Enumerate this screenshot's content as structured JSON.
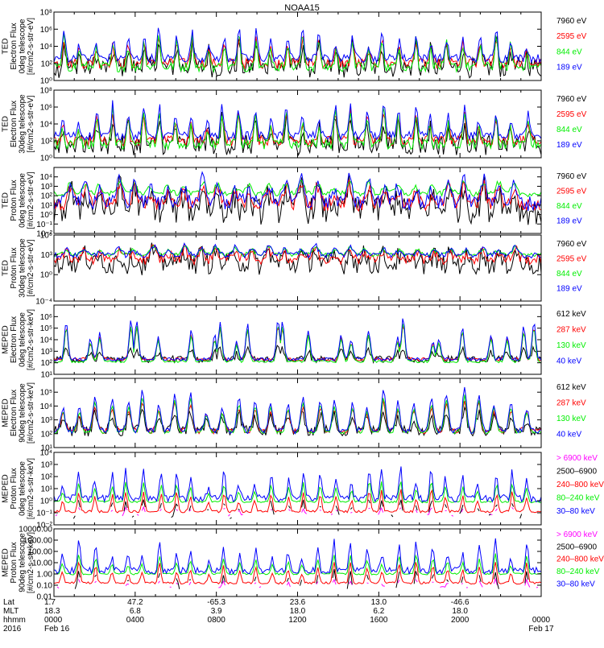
{
  "title": "NOAA15",
  "colors": {
    "black": "#000000",
    "red": "#ff0000",
    "green": "#00ee00",
    "blue": "#0000ff",
    "magenta": "#ff00ff"
  },
  "chart_data": [
    {
      "type": "line",
      "ylabel": [
        "TED",
        "Electron Flux",
        "0deg telescope",
        "[#/cm2-s-str-eV]"
      ],
      "ylog": true,
      "ylim": [
        1,
        100000000.0
      ],
      "yticks": [
        {
          "v": 1,
          "label": "10⁰"
        },
        {
          "v": 100,
          "label": "10²"
        },
        {
          "v": 10000,
          "label": "10⁴"
        },
        {
          "v": 1000000,
          "label": "10⁶"
        },
        {
          "v": 100000000,
          "label": "10⁸"
        }
      ],
      "profile": "ted_e",
      "series": [
        {
          "name": "7960 eV",
          "color": "#000000",
          "base": 1.5,
          "peak": 5,
          "noise": 1.2
        },
        {
          "name": "2595 eV",
          "color": "#ff0000",
          "base": 2.0,
          "peak": 5.5,
          "noise": 0.6
        },
        {
          "name": "844 eV",
          "color": "#00ee00",
          "base": 1.6,
          "peak": 5.8,
          "noise": 0.6
        },
        {
          "name": "189 eV",
          "color": "#0000ff",
          "base": 2.6,
          "peak": 6.2,
          "noise": 0.5
        }
      ]
    },
    {
      "type": "line",
      "ylabel": [
        "TED",
        "Electron Flux",
        "30deg telescope",
        "[#/cm2-s-str-eV]"
      ],
      "ylog": true,
      "ylim": [
        1,
        100000000.0
      ],
      "yticks": [
        {
          "v": 1,
          "label": "10⁰"
        },
        {
          "v": 100,
          "label": "10²"
        },
        {
          "v": 10000,
          "label": "10⁴"
        },
        {
          "v": 1000000,
          "label": "10⁶"
        },
        {
          "v": 100000000,
          "label": "10⁸"
        }
      ],
      "profile": "ted_e",
      "series": [
        {
          "name": "7960 eV",
          "color": "#000000",
          "base": 1.5,
          "peak": 5,
          "noise": 1.2
        },
        {
          "name": "2595 eV",
          "color": "#ff0000",
          "base": 2.0,
          "peak": 5.5,
          "noise": 0.6
        },
        {
          "name": "844 eV",
          "color": "#00ee00",
          "base": 1.6,
          "peak": 5.8,
          "noise": 0.6
        },
        {
          "name": "189 eV",
          "color": "#0000ff",
          "base": 2.6,
          "peak": 6.5,
          "noise": 0.5
        }
      ]
    },
    {
      "type": "line",
      "ylabel": [
        "TED",
        "Proton Flux",
        "0deg telescope",
        "[#/cm2-s-str-eV]"
      ],
      "ylog": true,
      "ylim": [
        0.01,
        100000.0
      ],
      "yticks": [
        {
          "v": 0.01,
          "label": "10⁻²"
        },
        {
          "v": 0.1,
          "label": "10⁻¹"
        },
        {
          "v": 1,
          "label": "10⁰"
        },
        {
          "v": 10,
          "label": "10¹"
        },
        {
          "v": 100,
          "label": "10²"
        },
        {
          "v": 1000,
          "label": "10³"
        },
        {
          "v": 10000,
          "label": "10⁴"
        }
      ],
      "profile": "ted_p",
      "series": [
        {
          "name": "7960 eV",
          "color": "#000000",
          "base": 0.3,
          "peak": 3,
          "noise": 1.4
        },
        {
          "name": "2595 eV",
          "color": "#ff0000",
          "base": 1.0,
          "peak": 3.3,
          "noise": 0.7
        },
        {
          "name": "844 eV",
          "color": "#00ee00",
          "base": 2.2,
          "peak": 3.5,
          "noise": 0.3
        },
        {
          "name": "189 eV",
          "color": "#0000ff",
          "base": 1.2,
          "peak": 3.8,
          "noise": 0.8
        }
      ]
    },
    {
      "type": "line",
      "ylabel": [
        "TED",
        "Proton Flux",
        "30deg telescope",
        "[#/cm2-s-str-eV]"
      ],
      "ylog": true,
      "ylim": [
        0.0001,
        1000000.0
      ],
      "yticks": [
        {
          "v": 0.0001,
          "label": "10⁻⁴"
        },
        {
          "v": 1,
          "label": "10⁰"
        },
        {
          "v": 1000,
          "label": "10³"
        },
        {
          "v": 1000000,
          "label": "10⁶"
        }
      ],
      "profile": "ted_p",
      "series": [
        {
          "name": "7960 eV",
          "color": "#000000",
          "base": 1.5,
          "peak": 4,
          "noise": 1.6
        },
        {
          "name": "2595 eV",
          "color": "#ff0000",
          "base": 2.3,
          "peak": 4.2,
          "noise": 0.8
        },
        {
          "name": "844 eV",
          "color": "#00ee00",
          "base": 3.0,
          "peak": 4.4,
          "noise": 0.3
        },
        {
          "name": "189 eV",
          "color": "#0000ff",
          "base": 2.9,
          "peak": 4.6,
          "noise": 0.4
        }
      ]
    },
    {
      "type": "line",
      "ylabel": [
        "MEPED",
        "Electron Flux",
        "0deg telescope",
        "[#/cm2-s-str-keV]"
      ],
      "ylog": true,
      "ylim": [
        10,
        10000000.0
      ],
      "yticks": [
        {
          "v": 10,
          "label": "10¹"
        },
        {
          "v": 100,
          "label": "10²"
        },
        {
          "v": 1000,
          "label": "10³"
        },
        {
          "v": 10000,
          "label": "10⁴"
        },
        {
          "v": 100000,
          "label": "10⁵"
        },
        {
          "v": 1000000,
          "label": "10⁶"
        }
      ],
      "profile": "meped_e0",
      "series": [
        {
          "name": "612 keV",
          "color": "#000000",
          "base": 2.3,
          "peak": 3.5,
          "noise": 0.3
        },
        {
          "name": "287 keV",
          "color": "#ff0000",
          "base": 2.3,
          "peak": 5.5,
          "noise": 0.15
        },
        {
          "name": "130 keV",
          "color": "#00ee00",
          "base": 2.1,
          "peak": 5.6,
          "noise": 0.1
        },
        {
          "name": "40 keV",
          "color": "#0000ff",
          "base": 2.3,
          "peak": 6.1,
          "noise": 0.15
        }
      ]
    },
    {
      "type": "line",
      "ylabel": [
        "MEPED",
        "Electron Flux",
        "90deg telescope",
        "[#/cm2-s-str-keV]"
      ],
      "ylog": true,
      "ylim": [
        10,
        1000000.0
      ],
      "yticks": [
        {
          "v": 10,
          "label": "10¹"
        },
        {
          "v": 100,
          "label": "10²"
        },
        {
          "v": 1000,
          "label": "10³"
        },
        {
          "v": 10000,
          "label": "10⁴"
        },
        {
          "v": 100000,
          "label": "10⁵"
        }
      ],
      "profile": "meped_e90",
      "series": [
        {
          "name": "612 keV",
          "color": "#000000",
          "base": 2.2,
          "peak": 3.8,
          "noise": 0.4
        },
        {
          "name": "287 keV",
          "color": "#ff0000",
          "base": 2.2,
          "peak": 4.5,
          "noise": 0.2
        },
        {
          "name": "130 keV",
          "color": "#00ee00",
          "base": 2.1,
          "peak": 4.8,
          "noise": 0.1
        },
        {
          "name": "40 keV",
          "color": "#0000ff",
          "base": 2.2,
          "peak": 5.2,
          "noise": 0.2
        }
      ]
    },
    {
      "type": "line",
      "ylabel": [
        "MEPED",
        "Proton Flux",
        "0deg telescope",
        "[#/cm2-s-str-keV]"
      ],
      "ylog": true,
      "ylim": [
        0.01,
        10000
      ],
      "yticks": [
        {
          "v": 0.01,
          "label": "10⁻²"
        },
        {
          "v": 0.1,
          "label": "10⁻¹"
        },
        {
          "v": 1,
          "label": "10⁰"
        },
        {
          "v": 10,
          "label": "10¹"
        },
        {
          "v": 100,
          "label": "10²"
        },
        {
          "v": 1000,
          "label": "10³"
        },
        {
          "v": 10000,
          "label": "10⁴"
        }
      ],
      "profile": "meped_p",
      "series": [
        {
          "name": "> 6900 keV",
          "color": "#ff00ff",
          "base": -1.2,
          "peak": -0.5,
          "noise": 0.1,
          "sparse": true
        },
        {
          "name": "2500–6900",
          "color": "#000000",
          "base": -1.3,
          "peak": 0.2,
          "noise": 0.2,
          "sparse": true
        },
        {
          "name": "240–800 keV",
          "color": "#ff0000",
          "base": -0.9,
          "peak": 1.0,
          "noise": 0.1
        },
        {
          "name": "80–240 keV",
          "color": "#00ee00",
          "base": -0.1,
          "peak": 1.7,
          "noise": 0.08
        },
        {
          "name": "30–80 keV",
          "color": "#0000ff",
          "base": 0.2,
          "peak": 2.8,
          "noise": 0.3
        }
      ]
    },
    {
      "type": "line",
      "ylabel": [
        "MEPED",
        "Proton Flux",
        "90deg telescope",
        "[#/cm2-s-str-keV]"
      ],
      "ylog": true,
      "ylim": [
        0.01,
        10000
      ],
      "yticks": [
        {
          "v": 0.01,
          "label": "0.01"
        },
        {
          "v": 0.1,
          "label": "0.10"
        },
        {
          "v": 1,
          "label": "1.00"
        },
        {
          "v": 10,
          "label": "10.00"
        },
        {
          "v": 100,
          "label": "100.00"
        },
        {
          "v": 1000,
          "label": "1000.00"
        },
        {
          "v": 10000,
          "label": "10000.00"
        }
      ],
      "profile": "meped_p",
      "series": [
        {
          "name": "> 6900 keV",
          "color": "#ff00ff",
          "base": -1.2,
          "peak": -0.5,
          "noise": 0.1,
          "sparse": true
        },
        {
          "name": "2500–6900",
          "color": "#000000",
          "base": -1.3,
          "peak": 0.3,
          "noise": 0.2,
          "sparse": true
        },
        {
          "name": "240–800 keV",
          "color": "#ff0000",
          "base": -0.8,
          "peak": 1.2,
          "noise": 0.1
        },
        {
          "name": "80–240 keV",
          "color": "#00ee00",
          "base": 0.0,
          "peak": 1.8,
          "noise": 0.08
        },
        {
          "name": "30–80 keV",
          "color": "#0000ff",
          "base": 0.3,
          "peak": 3.0,
          "noise": 0.3
        }
      ]
    }
  ],
  "xaxis": {
    "row_labels": [
      "Lat",
      "MLT",
      "hhmm",
      "2016"
    ],
    "ticks": [
      {
        "hour": 0,
        "lat": "1.7",
        "mlt": "18.3",
        "hhmm": "0000",
        "date": "Feb 16"
      },
      {
        "hour": 4,
        "lat": "47.2",
        "mlt": "6.8",
        "hhmm": "0400",
        "date": ""
      },
      {
        "hour": 8,
        "lat": "-65.3",
        "mlt": "3.9",
        "hhmm": "0800",
        "date": ""
      },
      {
        "hour": 12,
        "lat": "23.6",
        "mlt": "18.0",
        "hhmm": "1200",
        "date": ""
      },
      {
        "hour": 16,
        "lat": "13.0",
        "mlt": "6.2",
        "hhmm": "1600",
        "date": ""
      },
      {
        "hour": 20,
        "lat": "-46.6",
        "mlt": "18.0",
        "hhmm": "2000",
        "date": ""
      },
      {
        "hour": 24,
        "lat": "",
        "mlt": "",
        "hhmm": "0000",
        "date": "Feb 17"
      }
    ],
    "range_hours": [
      0,
      24
    ]
  }
}
